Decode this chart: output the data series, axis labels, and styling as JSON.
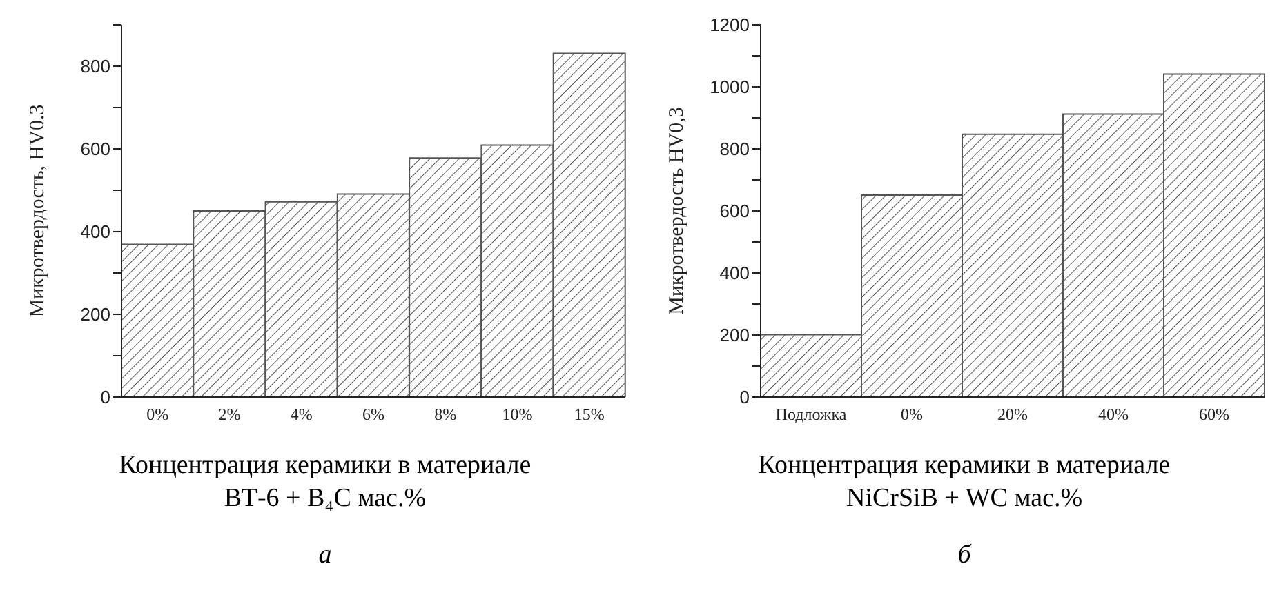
{
  "chart_data": [
    {
      "type": "bar",
      "categories": [
        "0%",
        "2%",
        "4%",
        "6%",
        "8%",
        "10%",
        "15%"
      ],
      "values": [
        369,
        450,
        472,
        491,
        578,
        609,
        831
      ],
      "color": "#555555",
      "ylim": [
        0,
        900
      ],
      "yticks": [
        0,
        {
          "value": 100,
          "label": null
        },
        200,
        {
          "value": 300,
          "label": null
        },
        400,
        {
          "value": 500,
          "label": null
        },
        600,
        {
          "value": 700,
          "label": null
        },
        800,
        {
          "value": 900,
          "label": null
        }
      ],
      "ylabel": "Микротвердость, HV0.3",
      "xlabel": "Концентрация керамики в материале ВТ-6 + B₄C мас.%",
      "annotations": [
        "а"
      ],
      "grid": false,
      "legend": false
    },
    {
      "type": "bar",
      "categories": [
        "Подложка",
        "0%",
        "20%",
        "40%",
        "60%"
      ],
      "values": [
        201,
        651,
        847,
        912,
        1041
      ],
      "color": "#555555",
      "ylim": [
        0,
        1200
      ],
      "yticks": [
        0,
        {
          "value": 100,
          "label": null
        },
        200,
        {
          "value": 300,
          "label": null
        },
        400,
        {
          "value": 500,
          "label": null
        },
        600,
        {
          "value": 700,
          "label": null
        },
        800,
        {
          "value": 900,
          "label": null
        },
        1000,
        {
          "value": 1100,
          "label": null
        },
        1200
      ],
      "ylabel": "Микротвердость HV0,3",
      "xlabel": "Концентрация керамики в материале NiCrSiB + WC мас.%",
      "annotations": [
        "б"
      ],
      "grid": false,
      "legend": false
    }
  ]
}
